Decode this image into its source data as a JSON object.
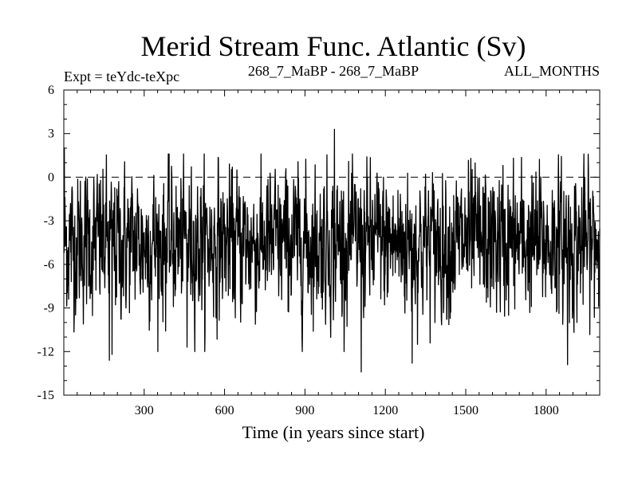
{
  "chart_data": {
    "type": "line",
    "title": "Merid Stream Func. Atlantic (Sv)",
    "header_left": "Expt = teYdc-teXpc",
    "header_center": "268_7_MaBP - 268_7_MaBP",
    "header_right": "ALL_MONTHS",
    "xlabel": "Time (in years since start)",
    "ylabel": "",
    "xlim": [
      0,
      2000
    ],
    "ylim": [
      -15,
      6
    ],
    "x_ticks": [
      300,
      600,
      900,
      1200,
      1500,
      1800
    ],
    "y_ticks": [
      6,
      3,
      0,
      -3,
      -6,
      -9,
      -12,
      -15
    ],
    "x_tick_labels": [
      "300",
      "600",
      "900",
      "1200",
      "1500",
      "1800"
    ],
    "y_tick_labels": [
      "6",
      "3",
      "0",
      "-3",
      "-6",
      "-9",
      "-12",
      "-15"
    ],
    "reference_line": {
      "y": 0,
      "style": "dashed"
    },
    "series": [
      {
        "name": "Merid Stream Func. Atlantic",
        "color": "#000000",
        "description": "annual time series, mean about -4.5 Sv, fluctuations roughly -13 to +3",
        "x_start": 1,
        "x_step": 1,
        "n": 2000,
        "mean": -4.5,
        "notable_points": [
          {
            "x": 2,
            "y": 2.0
          },
          {
            "x": 170,
            "y": -12.6
          },
          {
            "x": 180,
            "y": -12.2
          },
          {
            "x": 460,
            "y": -11.7
          },
          {
            "x": 1010,
            "y": 3.3
          },
          {
            "x": 1110,
            "y": -13.4
          },
          {
            "x": 1300,
            "y": -12.8
          },
          {
            "x": 1880,
            "y": -12.9
          }
        ]
      }
    ]
  }
}
